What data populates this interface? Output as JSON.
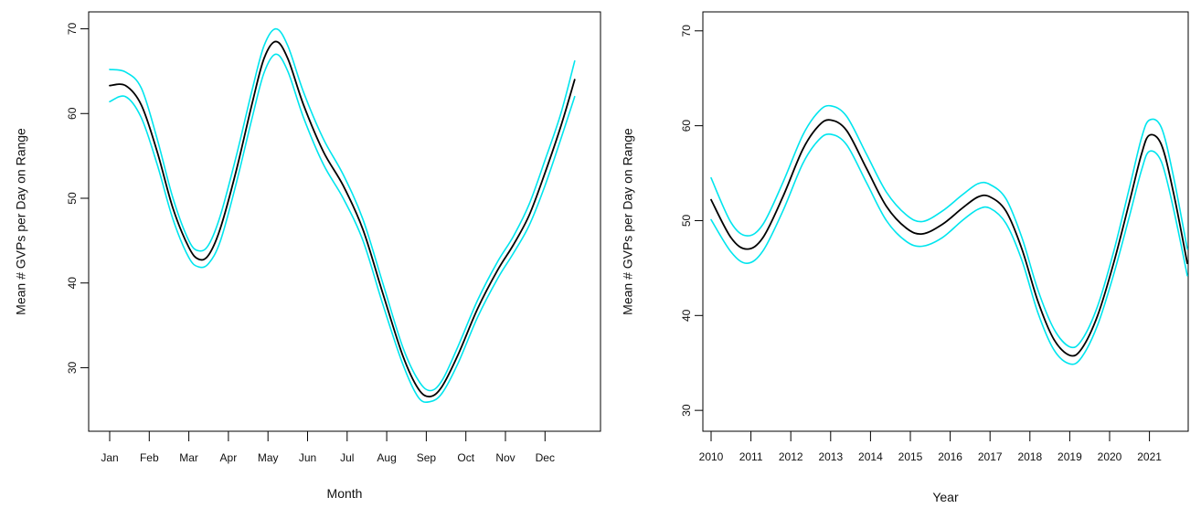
{
  "chart_data": [
    {
      "type": "line",
      "xlabel": "Month",
      "ylabel": "Mean # GVPs per Day on Range",
      "xlim": [
        0,
        12
      ],
      "ylim": [
        22.5,
        72
      ],
      "x_ticks": [
        {
          "x": 0,
          "label": "Jan"
        },
        {
          "x": 1,
          "label": "Feb"
        },
        {
          "x": 2,
          "label": "Mar"
        },
        {
          "x": 3,
          "label": "Apr"
        },
        {
          "x": 4,
          "label": "May"
        },
        {
          "x": 5,
          "label": "Jun"
        },
        {
          "x": 6,
          "label": "Jul"
        },
        {
          "x": 7,
          "label": "Aug"
        },
        {
          "x": 8,
          "label": "Sep"
        },
        {
          "x": 9,
          "label": "Oct"
        },
        {
          "x": 10,
          "label": "Nov"
        },
        {
          "x": 11,
          "label": "Dec"
        }
      ],
      "y_ticks": [
        30,
        40,
        50,
        60,
        70
      ],
      "grid": false,
      "series": [
        {
          "role": "fit",
          "color": "#000000",
          "points": [
            [
              0,
              63.3
            ],
            [
              0.4,
              63.3
            ],
            [
              0.8,
              61
            ],
            [
              1.2,
              55.5
            ],
            [
              1.6,
              48.8
            ],
            [
              2.0,
              44.2
            ],
            [
              2.25,
              42.8
            ],
            [
              2.5,
              43.3
            ],
            [
              2.8,
              46.5
            ],
            [
              3.2,
              53.3
            ],
            [
              3.6,
              61.2
            ],
            [
              3.9,
              66.5
            ],
            [
              4.2,
              68.5
            ],
            [
              4.5,
              66.5
            ],
            [
              4.9,
              61
            ],
            [
              5.4,
              55.5
            ],
            [
              5.9,
              51.5
            ],
            [
              6.4,
              46.3
            ],
            [
              6.9,
              38.8
            ],
            [
              7.4,
              31.5
            ],
            [
              7.8,
              27.5
            ],
            [
              8.1,
              26.6
            ],
            [
              8.4,
              27.8
            ],
            [
              8.8,
              31.5
            ],
            [
              9.3,
              37
            ],
            [
              9.8,
              41.5
            ],
            [
              10.2,
              44.5
            ],
            [
              10.6,
              48
            ],
            [
              11.0,
              53
            ],
            [
              11.4,
              58.5
            ],
            [
              11.75,
              64
            ]
          ]
        },
        {
          "role": "upper",
          "color": "#00e5ee",
          "points": [
            [
              0,
              65.2
            ],
            [
              0.4,
              64.9
            ],
            [
              0.8,
              63
            ],
            [
              1.2,
              57
            ],
            [
              1.6,
              50
            ],
            [
              2.0,
              45
            ],
            [
              2.25,
              43.8
            ],
            [
              2.5,
              44.5
            ],
            [
              2.8,
              48
            ],
            [
              3.2,
              55
            ],
            [
              3.6,
              62.8
            ],
            [
              3.9,
              68
            ],
            [
              4.2,
              70
            ],
            [
              4.5,
              68
            ],
            [
              4.9,
              62.5
            ],
            [
              5.4,
              57
            ],
            [
              5.9,
              52.8
            ],
            [
              6.4,
              47.5
            ],
            [
              6.9,
              40
            ],
            [
              7.4,
              32.5
            ],
            [
              7.8,
              28.5
            ],
            [
              8.1,
              27.3
            ],
            [
              8.4,
              28.5
            ],
            [
              8.8,
              32.5
            ],
            [
              9.3,
              38
            ],
            [
              9.8,
              42.5
            ],
            [
              10.2,
              45.5
            ],
            [
              10.6,
              49.3
            ],
            [
              11.0,
              54.5
            ],
            [
              11.4,
              60
            ],
            [
              11.75,
              66.2
            ]
          ]
        },
        {
          "role": "lower",
          "color": "#00e5ee",
          "points": [
            [
              0,
              61.4
            ],
            [
              0.4,
              62
            ],
            [
              0.8,
              59.5
            ],
            [
              1.2,
              54
            ],
            [
              1.6,
              47.5
            ],
            [
              2.0,
              43
            ],
            [
              2.25,
              41.9
            ],
            [
              2.5,
              42.3
            ],
            [
              2.8,
              45
            ],
            [
              3.2,
              51.8
            ],
            [
              3.6,
              59.5
            ],
            [
              3.9,
              64.8
            ],
            [
              4.2,
              67
            ],
            [
              4.5,
              65
            ],
            [
              4.9,
              59.5
            ],
            [
              5.4,
              54
            ],
            [
              5.9,
              50
            ],
            [
              6.4,
              45
            ],
            [
              6.9,
              37.5
            ],
            [
              7.4,
              30.5
            ],
            [
              7.8,
              26.5
            ],
            [
              8.1,
              26
            ],
            [
              8.4,
              27
            ],
            [
              8.8,
              30.5
            ],
            [
              9.3,
              36
            ],
            [
              9.8,
              40.5
            ],
            [
              10.2,
              43.5
            ],
            [
              10.6,
              46.8
            ],
            [
              11.0,
              51.5
            ],
            [
              11.4,
              57
            ],
            [
              11.75,
              62
            ]
          ]
        }
      ]
    },
    {
      "type": "line",
      "xlabel": "Year",
      "ylabel": "Mean # GVPs per Day on Range",
      "xlim": [
        2009.95,
        2022.05
      ],
      "ylim": [
        27.8,
        72
      ],
      "x_ticks": [
        {
          "x": 2010,
          "label": "2010"
        },
        {
          "x": 2011,
          "label": "2011"
        },
        {
          "x": 2012,
          "label": "2012"
        },
        {
          "x": 2013,
          "label": "2013"
        },
        {
          "x": 2014,
          "label": "2014"
        },
        {
          "x": 2015,
          "label": "2015"
        },
        {
          "x": 2016,
          "label": "2016"
        },
        {
          "x": 2017,
          "label": "2017"
        },
        {
          "x": 2018,
          "label": "2018"
        },
        {
          "x": 2019,
          "label": "2019"
        },
        {
          "x": 2020,
          "label": "2020"
        },
        {
          "x": 2021,
          "label": "2021"
        }
      ],
      "y_ticks": [
        30,
        40,
        50,
        60,
        70
      ],
      "grid": false,
      "series": [
        {
          "role": "fit",
          "color": "#000000",
          "points": [
            [
              2010,
              52.2
            ],
            [
              2010.5,
              48.2
            ],
            [
              2010.9,
              47
            ],
            [
              2011.3,
              48.2
            ],
            [
              2011.8,
              52.5
            ],
            [
              2012.3,
              57.5
            ],
            [
              2012.7,
              60
            ],
            [
              2013.0,
              60.6
            ],
            [
              2013.4,
              59.5
            ],
            [
              2013.9,
              55.5
            ],
            [
              2014.4,
              51.5
            ],
            [
              2014.9,
              49.2
            ],
            [
              2015.3,
              48.6
            ],
            [
              2015.8,
              49.6
            ],
            [
              2016.3,
              51.3
            ],
            [
              2016.7,
              52.5
            ],
            [
              2017.0,
              52.5
            ],
            [
              2017.4,
              51
            ],
            [
              2017.8,
              47
            ],
            [
              2018.2,
              41.5
            ],
            [
              2018.6,
              37.5
            ],
            [
              2019.0,
              35.8
            ],
            [
              2019.3,
              36.5
            ],
            [
              2019.7,
              40
            ],
            [
              2020.1,
              45.5
            ],
            [
              2020.5,
              52
            ],
            [
              2020.8,
              57
            ],
            [
              2021.0,
              59
            ],
            [
              2021.3,
              58
            ],
            [
              2021.6,
              53
            ],
            [
              2021.95,
              45.5
            ]
          ]
        },
        {
          "role": "upper",
          "color": "#00e5ee",
          "points": [
            [
              2010,
              54.5
            ],
            [
              2010.5,
              49.8
            ],
            [
              2010.9,
              48.4
            ],
            [
              2011.3,
              49.6
            ],
            [
              2011.8,
              54
            ],
            [
              2012.3,
              59
            ],
            [
              2012.7,
              61.5
            ],
            [
              2013.0,
              62.1
            ],
            [
              2013.4,
              61
            ],
            [
              2013.9,
              57
            ],
            [
              2014.4,
              53
            ],
            [
              2014.9,
              50.6
            ],
            [
              2015.3,
              49.9
            ],
            [
              2015.8,
              51
            ],
            [
              2016.3,
              52.7
            ],
            [
              2016.7,
              53.9
            ],
            [
              2017.0,
              53.8
            ],
            [
              2017.4,
              52.3
            ],
            [
              2017.8,
              48.2
            ],
            [
              2018.2,
              42.7
            ],
            [
              2018.6,
              38.6
            ],
            [
              2019.0,
              36.7
            ],
            [
              2019.3,
              37.4
            ],
            [
              2019.7,
              41
            ],
            [
              2020.1,
              46.7
            ],
            [
              2020.5,
              53.5
            ],
            [
              2020.8,
              58.7
            ],
            [
              2021.0,
              60.6
            ],
            [
              2021.3,
              59.8
            ],
            [
              2021.6,
              54.7
            ],
            [
              2021.95,
              47
            ]
          ]
        },
        {
          "role": "lower",
          "color": "#00e5ee",
          "points": [
            [
              2010,
              50.1
            ],
            [
              2010.5,
              46.7
            ],
            [
              2010.9,
              45.5
            ],
            [
              2011.3,
              46.8
            ],
            [
              2011.8,
              51
            ],
            [
              2012.3,
              56
            ],
            [
              2012.7,
              58.5
            ],
            [
              2013.0,
              59.1
            ],
            [
              2013.4,
              58
            ],
            [
              2013.9,
              54
            ],
            [
              2014.4,
              50
            ],
            [
              2014.9,
              47.8
            ],
            [
              2015.3,
              47.3
            ],
            [
              2015.8,
              48.2
            ],
            [
              2016.3,
              50
            ],
            [
              2016.7,
              51.2
            ],
            [
              2017.0,
              51.3
            ],
            [
              2017.4,
              49.7
            ],
            [
              2017.8,
              45.8
            ],
            [
              2018.2,
              40.3
            ],
            [
              2018.6,
              36.4
            ],
            [
              2019.0,
              34.9
            ],
            [
              2019.3,
              35.6
            ],
            [
              2019.7,
              39
            ],
            [
              2020.1,
              44.3
            ],
            [
              2020.5,
              50.5
            ],
            [
              2020.8,
              55.3
            ],
            [
              2021.0,
              57.3
            ],
            [
              2021.3,
              56.2
            ],
            [
              2021.6,
              51.3
            ],
            [
              2021.95,
              44.2
            ]
          ]
        }
      ]
    }
  ]
}
